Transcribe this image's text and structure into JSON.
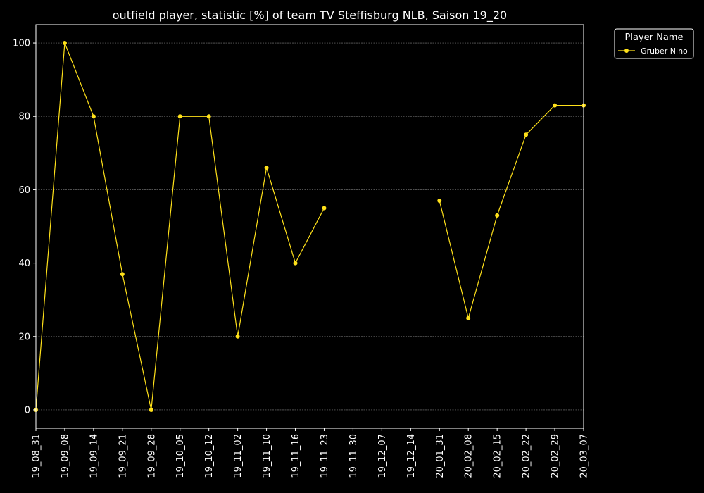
{
  "chart_data": {
    "type": "line",
    "title": "outfield player, statistic [%] of team TV Steffisburg NLB, Saison 19_20",
    "xlabel": "",
    "ylabel": "",
    "categories": [
      "19_08_31",
      "19_09_08",
      "19_09_14",
      "19_09_21",
      "19_09_28",
      "19_10_05",
      "19_10_12",
      "19_11_02",
      "19_11_10",
      "19_11_16",
      "19_11_23",
      "19_11_30",
      "19_12_07",
      "19_12_14",
      "20_01_31",
      "20_02_08",
      "20_02_15",
      "20_02_22",
      "20_02_29",
      "20_03_07"
    ],
    "series": [
      {
        "name": "Gruber Nino",
        "color": "#ffe11a",
        "values": [
          0,
          100,
          80,
          37,
          0,
          80,
          80,
          20,
          66,
          40,
          55,
          null,
          null,
          null,
          57,
          25,
          53,
          75,
          83,
          83
        ]
      }
    ],
    "ylim": [
      -5,
      105
    ],
    "yticks": [
      0,
      20,
      40,
      60,
      80,
      100
    ],
    "grid": true,
    "legend": {
      "title": "Player Name",
      "position": "top-right-outside"
    },
    "colors": {
      "background": "#000000",
      "axis": "#ffffff",
      "grid": "#808080"
    }
  }
}
